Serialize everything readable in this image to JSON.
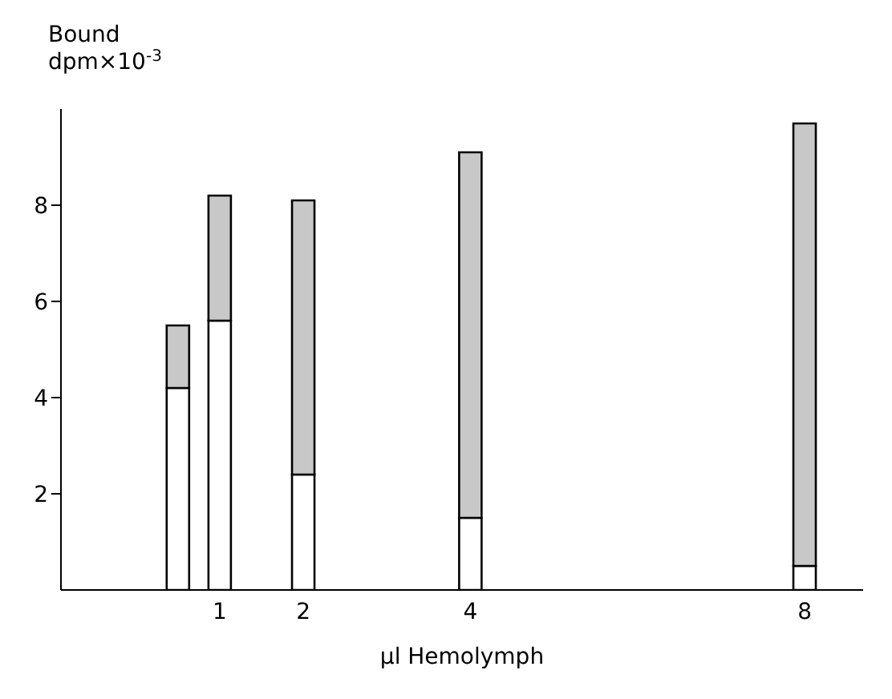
{
  "chart_data": {
    "type": "bar",
    "stacked": true,
    "ylabel": "Bound\ndpm×10$^{-3}$",
    "xlabel": "µl Hemolymph",
    "x": [
      0.5,
      1,
      2,
      4,
      8
    ],
    "series": [
      {
        "color": "#ffffff",
        "values": [
          4.2,
          5.6,
          2.4,
          1.5,
          0.5
        ]
      },
      {
        "color": "#c8c8c8",
        "values": [
          1.3,
          2.6,
          5.7,
          7.6,
          9.2
        ]
      }
    ],
    "xlim": [
      -0.9,
      8.7
    ],
    "xticks": [
      1,
      2,
      4,
      8
    ],
    "ylim": [
      0,
      10
    ],
    "yticks": [
      2,
      4,
      6,
      8
    ]
  }
}
